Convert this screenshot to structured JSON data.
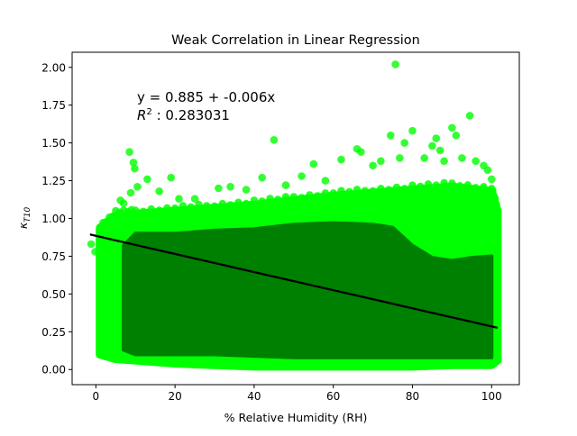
{
  "chart_data": {
    "type": "scatter",
    "title": "Weak Correlation in Linear Regression",
    "xlabel": "% Relative Humidity (RH)",
    "ylabel": "κ_T10",
    "ylabel_main": "κ",
    "ylabel_sub": "T10",
    "xlim": [
      -6,
      107
    ],
    "ylim": [
      -0.1,
      2.1
    ],
    "xticks": [
      0,
      20,
      40,
      60,
      80,
      100
    ],
    "xtick_labels": [
      "0",
      "20",
      "40",
      "60",
      "80",
      "100"
    ],
    "yticks": [
      0.0,
      0.25,
      0.5,
      0.75,
      1.0,
      1.25,
      1.5,
      1.75,
      2.0
    ],
    "ytick_labels": [
      "0.00",
      "0.25",
      "0.50",
      "0.75",
      "1.00",
      "1.25",
      "1.50",
      "1.75",
      "2.00"
    ],
    "grid": false,
    "annotation": {
      "equation": "y = 0.885 + -0.006x",
      "r2_label": "R",
      "r2_sup": "2",
      "r2_value": " : 0.283031",
      "r2_full": "R² : 0.283031"
    },
    "regression": {
      "intercept": 0.885,
      "slope": -0.006,
      "x_range": [
        -1.5,
        101.5
      ],
      "color": "#000000"
    },
    "series": [
      {
        "name": "observations",
        "description_note": "dense cloud, outer halo bright green, core dark green",
        "halo_color": "#00ff00",
        "core_color": "#008000",
        "band_top": [
          [
            1,
            0.93
          ],
          [
            5,
            1.02
          ],
          [
            10,
            1.03
          ],
          [
            20,
            1.05
          ],
          [
            30,
            1.07
          ],
          [
            40,
            1.09
          ],
          [
            50,
            1.12
          ],
          [
            60,
            1.15
          ],
          [
            70,
            1.17
          ],
          [
            80,
            1.19
          ],
          [
            90,
            1.21
          ],
          [
            100,
            1.18
          ],
          [
            101.5,
            1.05
          ]
        ],
        "band_bottom": [
          [
            1,
            0.1
          ],
          [
            5,
            0.07
          ],
          [
            10,
            0.06
          ],
          [
            20,
            0.04
          ],
          [
            30,
            0.03
          ],
          [
            40,
            0.02
          ],
          [
            50,
            0.02
          ],
          [
            60,
            0.02
          ],
          [
            70,
            0.02
          ],
          [
            80,
            0.02
          ],
          [
            90,
            0.03
          ],
          [
            100,
            0.03
          ],
          [
            101.5,
            0.06
          ]
        ],
        "core_top": [
          [
            7,
            0.82
          ],
          [
            10,
            0.9
          ],
          [
            20,
            0.9
          ],
          [
            30,
            0.92
          ],
          [
            40,
            0.93
          ],
          [
            50,
            0.96
          ],
          [
            60,
            0.97
          ],
          [
            70,
            0.96
          ],
          [
            75,
            0.94
          ],
          [
            80,
            0.82
          ],
          [
            85,
            0.74
          ],
          [
            90,
            0.72
          ],
          [
            95,
            0.74
          ],
          [
            100,
            0.75
          ]
        ],
        "core_bottom": [
          [
            7,
            0.13
          ],
          [
            10,
            0.1
          ],
          [
            20,
            0.1
          ],
          [
            30,
            0.1
          ],
          [
            40,
            0.09
          ],
          [
            50,
            0.08
          ],
          [
            60,
            0.08
          ],
          [
            70,
            0.08
          ],
          [
            80,
            0.08
          ],
          [
            90,
            0.08
          ],
          [
            100,
            0.08
          ]
        ],
        "outliers": [
          [
            -1.2,
            0.83
          ],
          [
            -0.2,
            0.78
          ],
          [
            1.0,
            0.55
          ],
          [
            1.8,
            0.22
          ],
          [
            2.5,
            0.13
          ],
          [
            8.5,
            1.44
          ],
          [
            9.5,
            1.37
          ],
          [
            9.8,
            1.33
          ],
          [
            8.8,
            1.17
          ],
          [
            10.5,
            1.21
          ],
          [
            6.2,
            1.12
          ],
          [
            7.0,
            1.1
          ],
          [
            13.0,
            1.26
          ],
          [
            16.0,
            1.18
          ],
          [
            19.0,
            1.27
          ],
          [
            21.0,
            1.13
          ],
          [
            25.0,
            1.13
          ],
          [
            31.0,
            1.2
          ],
          [
            34.0,
            1.21
          ],
          [
            38.0,
            1.19
          ],
          [
            42.0,
            1.27
          ],
          [
            45.0,
            1.52
          ],
          [
            48.0,
            1.22
          ],
          [
            52.0,
            1.28
          ],
          [
            55.0,
            1.36
          ],
          [
            58.0,
            1.25
          ],
          [
            62.0,
            1.39
          ],
          [
            66.0,
            1.46
          ],
          [
            67.0,
            1.44
          ],
          [
            70.0,
            1.35
          ],
          [
            72.0,
            1.38
          ],
          [
            74.5,
            1.55
          ],
          [
            75.7,
            2.02
          ],
          [
            76.8,
            1.4
          ],
          [
            78.0,
            1.5
          ],
          [
            80.0,
            1.58
          ],
          [
            83.0,
            1.4
          ],
          [
            85.0,
            1.48
          ],
          [
            86.0,
            1.53
          ],
          [
            87.0,
            1.45
          ],
          [
            88.0,
            1.38
          ],
          [
            90.0,
            1.6
          ],
          [
            91.0,
            1.55
          ],
          [
            92.5,
            1.4
          ],
          [
            94.5,
            1.68
          ],
          [
            96.0,
            1.38
          ],
          [
            98.0,
            1.35
          ],
          [
            99.0,
            1.32
          ],
          [
            100.0,
            1.26
          ]
        ]
      }
    ]
  }
}
